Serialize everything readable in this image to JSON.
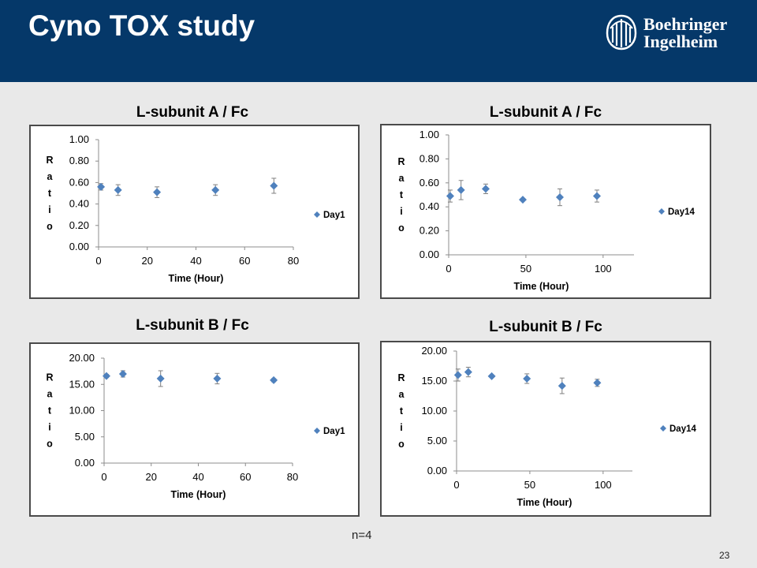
{
  "header": {
    "title": "Cyno TOX study",
    "logo_line1": "Boehringer",
    "logo_line2": "Ingelheim"
  },
  "colors": {
    "header_bg": "#053869",
    "marker": "#4f81bd"
  },
  "footnote": "n=4",
  "page_number": "23",
  "chart_data": [
    {
      "type": "scatter",
      "title": "L-subunit A / Fc",
      "xlabel": "Time (Hour)",
      "ylabel": "Ratio",
      "xlim": [
        0,
        80
      ],
      "xticks": [
        0,
        20,
        40,
        60,
        80
      ],
      "ylim": [
        0,
        1.0
      ],
      "yticks": [
        0.0,
        0.2,
        0.4,
        0.6,
        0.8,
        1.0
      ],
      "ydecimals": 2,
      "legend_position": "right",
      "series": [
        {
          "name": "Day1",
          "x": [
            1,
            8,
            24,
            48,
            72
          ],
          "y": [
            0.56,
            0.53,
            0.51,
            0.53,
            0.57
          ],
          "err": [
            0.03,
            0.05,
            0.05,
            0.05,
            0.07
          ]
        }
      ]
    },
    {
      "type": "scatter",
      "title": "L-subunit A / Fc",
      "xlabel": "Time (Hour)",
      "ylabel": "Ratio",
      "xlim": [
        0,
        120
      ],
      "xticks": [
        0,
        50,
        100
      ],
      "ylim": [
        0,
        1.0
      ],
      "yticks": [
        0.0,
        0.2,
        0.4,
        0.6,
        0.8,
        1.0
      ],
      "ydecimals": 2,
      "legend_position": "right",
      "series": [
        {
          "name": "Day14",
          "x": [
            1,
            8,
            24,
            48,
            72,
            96
          ],
          "y": [
            0.49,
            0.54,
            0.55,
            0.46,
            0.48,
            0.49
          ],
          "err": [
            0.05,
            0.08,
            0.04,
            0.01,
            0.07,
            0.05
          ]
        }
      ]
    },
    {
      "type": "scatter",
      "title": "L-subunit B / Fc",
      "xlabel": "Time (Hour)",
      "ylabel": "Ratio",
      "xlim": [
        0,
        80
      ],
      "xticks": [
        0,
        20,
        40,
        60,
        80
      ],
      "ylim": [
        0,
        20
      ],
      "yticks": [
        0,
        5,
        10,
        15,
        20
      ],
      "ydecimals": 2,
      "legend_position": "right",
      "series": [
        {
          "name": "Day1",
          "x": [
            1,
            8,
            24,
            48,
            72
          ],
          "y": [
            16.6,
            17.0,
            16.1,
            16.1,
            15.8
          ],
          "err": [
            0.3,
            0.6,
            1.5,
            1.0,
            0.3
          ]
        }
      ]
    },
    {
      "type": "scatter",
      "title": "L-subunit B / Fc",
      "xlabel": "Time (Hour)",
      "ylabel": "Ratio",
      "xlim": [
        0,
        120
      ],
      "xticks": [
        0,
        50,
        100
      ],
      "ylim": [
        0,
        20
      ],
      "yticks": [
        0,
        5,
        10,
        15,
        20
      ],
      "ydecimals": 2,
      "legend_position": "right",
      "series": [
        {
          "name": "Day14",
          "x": [
            1,
            8,
            24,
            48,
            72,
            96
          ],
          "y": [
            16.0,
            16.5,
            15.8,
            15.4,
            14.2,
            14.7
          ],
          "err": [
            1.0,
            0.8,
            0.2,
            0.8,
            1.3,
            0.6
          ]
        }
      ]
    }
  ]
}
